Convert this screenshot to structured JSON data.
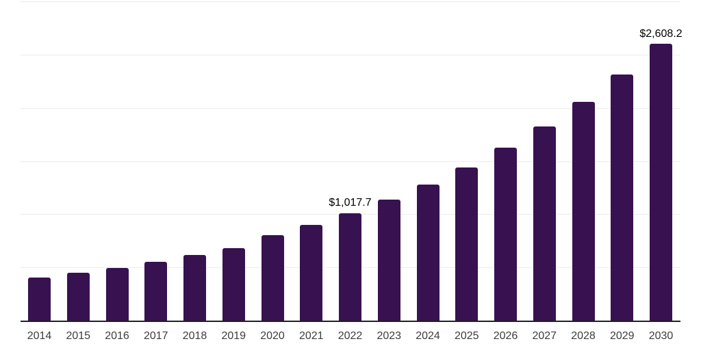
{
  "chart_data": {
    "type": "bar",
    "title": "",
    "xlabel": "",
    "ylabel": "",
    "categories": [
      "2014",
      "2015",
      "2016",
      "2017",
      "2018",
      "2019",
      "2020",
      "2021",
      "2022",
      "2023",
      "2024",
      "2025",
      "2026",
      "2027",
      "2028",
      "2029",
      "2030"
    ],
    "values": [
      414,
      457,
      504,
      557,
      624,
      688,
      810,
      905,
      1017.7,
      1143,
      1287,
      1448,
      1629,
      1832,
      2060,
      2318,
      2608.2
    ],
    "data_labels": [
      {
        "category": "2022",
        "text": "$1,017.7"
      },
      {
        "category": "2030",
        "text": "$2,608.2"
      }
    ],
    "value_format": "USD",
    "ylim": [
      0,
      3000
    ],
    "gridline_step": 500,
    "grid": true,
    "legend": false,
    "y_axis_tick_labels_visible": false,
    "colors": {
      "bar": "#381151",
      "gridline": "#ececec",
      "axis_line": "#1f1f1f",
      "tick_label": "#3c3c3c",
      "data_label": "#000000",
      "background": "#ffffff"
    }
  }
}
